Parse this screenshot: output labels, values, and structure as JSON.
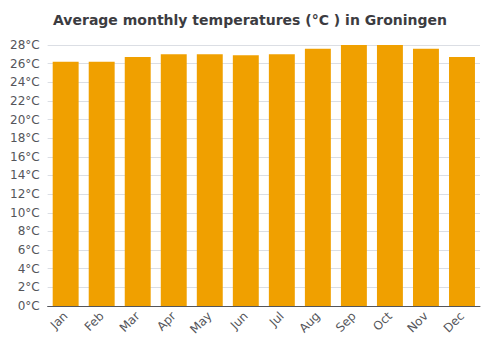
{
  "chart_data": {
    "type": "bar",
    "title": "Average monthly temperatures (°C ) in Groningen",
    "categories": [
      "Jan",
      "Feb",
      "Mar",
      "Apr",
      "May",
      "Jun",
      "Jul",
      "Aug",
      "Sep",
      "Oct",
      "Nov",
      "Dec"
    ],
    "values": [
      26.2,
      26.2,
      26.7,
      27.0,
      27.0,
      26.9,
      27.0,
      27.6,
      28.0,
      28.0,
      27.6,
      26.7
    ],
    "color": "#F0A000",
    "ylim": [
      0,
      28
    ],
    "yticks": [
      {
        "value": 0,
        "label": "0°C"
      },
      {
        "value": 2,
        "label": "2°C"
      },
      {
        "value": 4,
        "label": "4°C"
      },
      {
        "value": 6,
        "label": "6°C"
      },
      {
        "value": 8,
        "label": "8°C"
      },
      {
        "value": 10,
        "label": "10°C"
      },
      {
        "value": 12,
        "label": "12°C"
      },
      {
        "value": 14,
        "label": "14°C"
      },
      {
        "value": 16,
        "label": "16°C"
      },
      {
        "value": 18,
        "label": "18°C"
      },
      {
        "value": 20,
        "label": "20°C"
      },
      {
        "value": 22,
        "label": "22°C"
      },
      {
        "value": 24,
        "label": "24°C"
      },
      {
        "value": 26,
        "label": "26°C"
      },
      {
        "value": 28,
        "label": "28°C"
      }
    ],
    "grid": true
  }
}
